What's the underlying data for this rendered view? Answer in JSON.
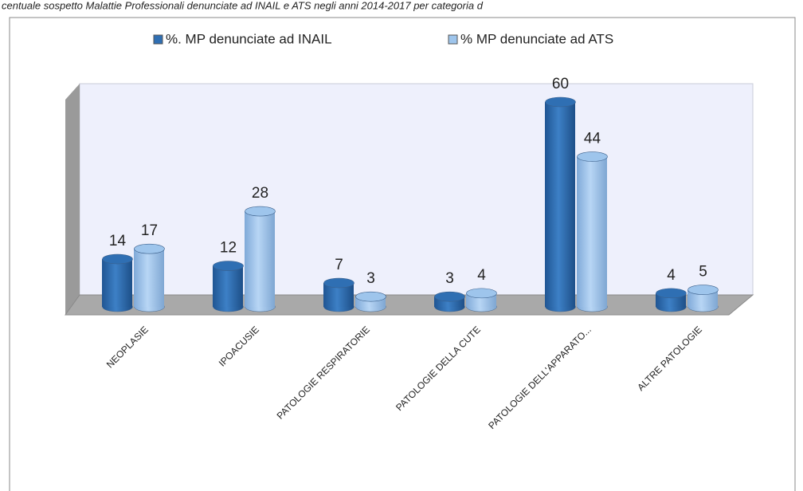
{
  "chart_data": {
    "type": "bar3d",
    "title": "centuale sospetto Malattie Professionali denunciate ad INAIL e ATS negli anni 2014-2017 per categoria d",
    "categories": [
      "NEOPLASIE",
      "IPOACUSIE",
      "PATOLOGIE RESPIRATORIE",
      "PATOLOGIE DELLA CUTE",
      "PATOLOGIE DELL'APPARATO...",
      "ALTRE PATOLOGIE"
    ],
    "series": [
      {
        "name": "%. MP denunciate ad INAIL",
        "color": "#2f6fb3",
        "values": [
          14,
          12,
          7,
          3,
          60,
          4
        ]
      },
      {
        "name": "% MP denunciate ad ATS",
        "color": "#9ec5ec",
        "values": [
          17,
          28,
          3,
          4,
          44,
          5
        ]
      }
    ]
  }
}
